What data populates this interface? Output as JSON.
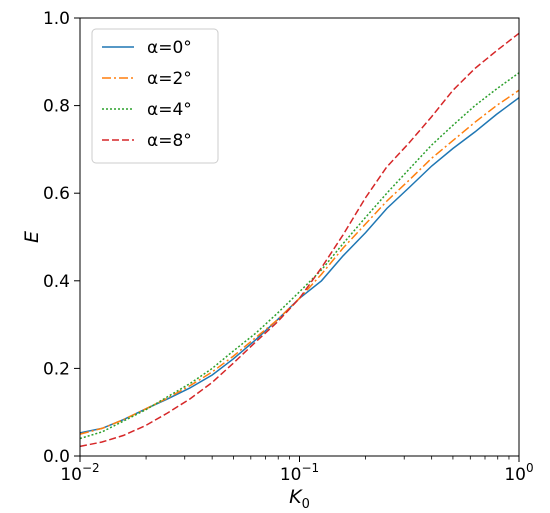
{
  "chart_data": {
    "type": "line",
    "xscale": "log",
    "xlabel_base": "K",
    "xlabel_sub": "0",
    "ylabel": "E",
    "xlim": [
      0.01,
      1
    ],
    "ylim": [
      0.0,
      1.0
    ],
    "x_ticks": [
      {
        "value": 0.01,
        "base": "10",
        "exp": "−2"
      },
      {
        "value": 0.1,
        "base": "10",
        "exp": "−1"
      },
      {
        "value": 1,
        "base": "10",
        "exp": "0"
      }
    ],
    "y_ticks": [
      "0.0",
      "0.2",
      "0.4",
      "0.6",
      "0.8",
      "1.0"
    ],
    "grid": false,
    "legend_position": "upper-left",
    "series": [
      {
        "name": "α=0°",
        "color": "#1f77b4",
        "dash": "solid",
        "x": [
          0.01,
          0.0126,
          0.0158,
          0.02,
          0.025,
          0.0316,
          0.04,
          0.05,
          0.063,
          0.079,
          0.1,
          0.126,
          0.158,
          0.2,
          0.25,
          0.316,
          0.4,
          0.5,
          0.63,
          0.79,
          1.0
        ],
        "y": [
          0.053,
          0.063,
          0.083,
          0.108,
          0.13,
          0.155,
          0.185,
          0.222,
          0.265,
          0.31,
          0.36,
          0.4,
          0.457,
          0.51,
          0.565,
          0.613,
          0.662,
          0.702,
          0.74,
          0.78,
          0.818
        ]
      },
      {
        "name": "α=2°",
        "color": "#ff7f0e",
        "dash": "dashdot",
        "x": [
          0.01,
          0.0126,
          0.0158,
          0.02,
          0.025,
          0.0316,
          0.04,
          0.05,
          0.063,
          0.079,
          0.1,
          0.126,
          0.158,
          0.2,
          0.25,
          0.316,
          0.4,
          0.5,
          0.63,
          0.79,
          1.0
        ],
        "y": [
          0.05,
          0.063,
          0.083,
          0.108,
          0.132,
          0.16,
          0.192,
          0.228,
          0.27,
          0.31,
          0.36,
          0.415,
          0.475,
          0.53,
          0.582,
          0.63,
          0.68,
          0.72,
          0.762,
          0.8,
          0.835
        ]
      },
      {
        "name": "α=4°",
        "color": "#2ca02c",
        "dash": "dotted",
        "x": [
          0.01,
          0.0126,
          0.0158,
          0.02,
          0.025,
          0.0316,
          0.04,
          0.05,
          0.063,
          0.079,
          0.1,
          0.126,
          0.158,
          0.2,
          0.25,
          0.316,
          0.4,
          0.5,
          0.63,
          0.79,
          1.0
        ],
        "y": [
          0.04,
          0.055,
          0.08,
          0.106,
          0.135,
          0.165,
          0.2,
          0.24,
          0.28,
          0.325,
          0.375,
          0.425,
          0.485,
          0.545,
          0.6,
          0.655,
          0.71,
          0.755,
          0.8,
          0.838,
          0.875
        ]
      },
      {
        "name": "α=8°",
        "color": "#d62728",
        "dash": "dashed",
        "x": [
          0.01,
          0.0126,
          0.0158,
          0.02,
          0.025,
          0.0316,
          0.04,
          0.05,
          0.063,
          0.079,
          0.1,
          0.126,
          0.158,
          0.2,
          0.25,
          0.316,
          0.4,
          0.5,
          0.63,
          0.79,
          1.0
        ],
        "y": [
          0.022,
          0.032,
          0.047,
          0.07,
          0.098,
          0.13,
          0.168,
          0.212,
          0.26,
          0.305,
          0.36,
          0.43,
          0.505,
          0.59,
          0.66,
          0.715,
          0.775,
          0.835,
          0.885,
          0.925,
          0.965
        ]
      }
    ]
  }
}
